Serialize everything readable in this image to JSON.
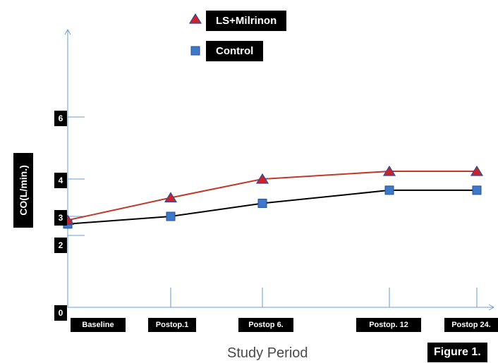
{
  "chart_data": {
    "type": "line",
    "categories": [
      "Baseline",
      "Postop.1",
      "Postop 6.",
      "Postop. 12",
      "Postop 24."
    ],
    "series": [
      {
        "name": "LS+Milrinon",
        "values": [
          2.8,
          3.5,
          4.0,
          4.25,
          4.25
        ],
        "color": "#c0392b",
        "marker": "triangle"
      },
      {
        "name": "Control",
        "values": [
          2.6,
          3.0,
          3.35,
          3.7,
          3.7
        ],
        "color": "#000000",
        "marker": "square"
      }
    ],
    "y_ticks": [
      "6",
      "4",
      "3",
      "2",
      "0"
    ],
    "xlabel": "Study Period",
    "ylabel": "CO(L/min.)",
    "ylim": [
      0,
      6
    ],
    "legend_position": "top",
    "grid": false,
    "figure_label": "Figure 1.",
    "colors": {
      "axis": "#6a9ed4",
      "marker_fill": "#3d78c9"
    }
  }
}
